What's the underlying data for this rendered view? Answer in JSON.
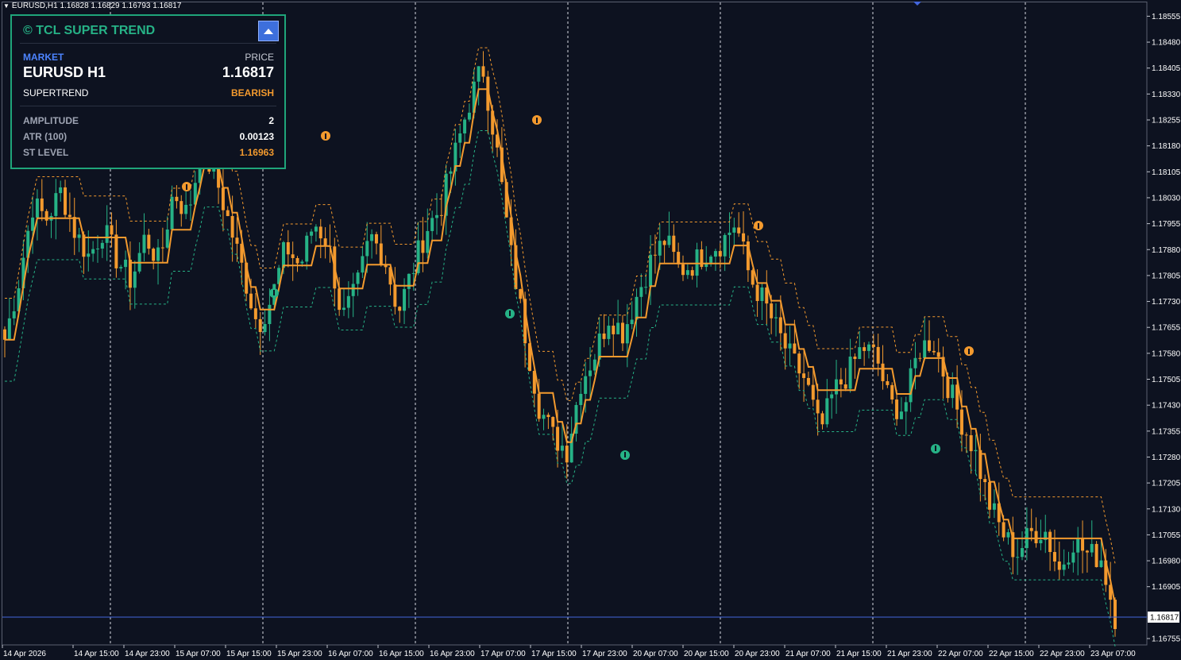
{
  "header": {
    "symbol_line": "EURUSD,H1  1.16828 1.16829 1.16793 1.16817"
  },
  "panel": {
    "title": "© TCL SUPER TREND",
    "market_label": "MARKET",
    "price_label": "PRICE",
    "symbol": "EURUSD H1",
    "price": "1.16817",
    "supertrend_label": "SUPERTREND",
    "supertrend_value": "BEARISH",
    "amplitude_label": "AMPLITUDE",
    "amplitude_value": "2",
    "atr_label": "ATR (100)",
    "atr_value": "0.00123",
    "st_level_label": "ST LEVEL",
    "st_level_value": "1.16963",
    "colors": {
      "accent": "#26b286",
      "bull": "#26b286",
      "bear": "#f39a2e",
      "button": "#3d6fdc",
      "market_label": "#4d84ff"
    }
  },
  "chart_data": {
    "type": "candlestick",
    "ylim": [
      1.16755,
      1.18595
    ],
    "price_ticks": [
      "1.18555",
      "1.18480",
      "1.18405",
      "1.18330",
      "1.18255",
      "1.18180",
      "1.18105",
      "1.18030",
      "1.17955",
      "1.17880",
      "1.17805",
      "1.17730",
      "1.17655",
      "1.17580",
      "1.17505",
      "1.17430",
      "1.17355",
      "1.17280",
      "1.17205",
      "1.17130",
      "1.17055",
      "1.16980",
      "1.16905",
      "1.16755"
    ],
    "current_price_label": "1.16817",
    "time_ticks": [
      "14 Apr 2026",
      "14 Apr 15:00",
      "14 Apr 23:00",
      "15 Apr 07:00",
      "15 Apr 15:00",
      "15 Apr 23:00",
      "16 Apr 07:00",
      "16 Apr 15:00",
      "16 Apr 23:00",
      "17 Apr 07:00",
      "17 Apr 15:00",
      "17 Apr 23:00",
      "20 Apr 07:00",
      "20 Apr 15:00",
      "20 Apr 23:00",
      "21 Apr 07:00",
      "21 Apr 15:00",
      "21 Apr 23:00",
      "22 Apr 07:00",
      "22 Apr 15:00",
      "22 Apr 23:00",
      "23 Apr 07:00"
    ],
    "day_separators": [
      "14 Apr 23:00",
      "15 Apr 23:00",
      "16 Apr 23:00",
      "17 Apr 23:00",
      "20 Apr 23:00",
      "21 Apr 23:00",
      "22 Apr 23:00"
    ],
    "close_path": [
      1.1762,
      1.1779,
      1.1801,
      1.1797,
      1.1805,
      1.1793,
      1.1786,
      1.1794,
      1.1785,
      1.1779,
      1.1792,
      1.1784,
      1.1805,
      1.1798,
      1.1817,
      1.1809,
      1.1795,
      1.1781,
      1.1766,
      1.1774,
      1.1789,
      1.1783,
      1.1796,
      1.179,
      1.1768,
      1.1776,
      1.1792,
      1.1786,
      1.177,
      1.1782,
      1.1794,
      1.18,
      1.1815,
      1.183,
      1.1841,
      1.1817,
      1.1787,
      1.1764,
      1.1743,
      1.1734,
      1.173,
      1.175,
      1.1758,
      1.1769,
      1.1764,
      1.1775,
      1.1785,
      1.1791,
      1.1782,
      1.1784,
      1.1788,
      1.179,
      1.1796,
      1.178,
      1.1773,
      1.1764,
      1.1756,
      1.175,
      1.1735,
      1.1747,
      1.1752,
      1.176,
      1.1757,
      1.1743,
      1.1742,
      1.1759,
      1.1762,
      1.175,
      1.1739,
      1.173,
      1.1715,
      1.1706,
      1.17,
      1.1706,
      1.1707,
      1.1695,
      1.1704,
      1.17,
      1.1699,
      1.1682
    ]
  }
}
